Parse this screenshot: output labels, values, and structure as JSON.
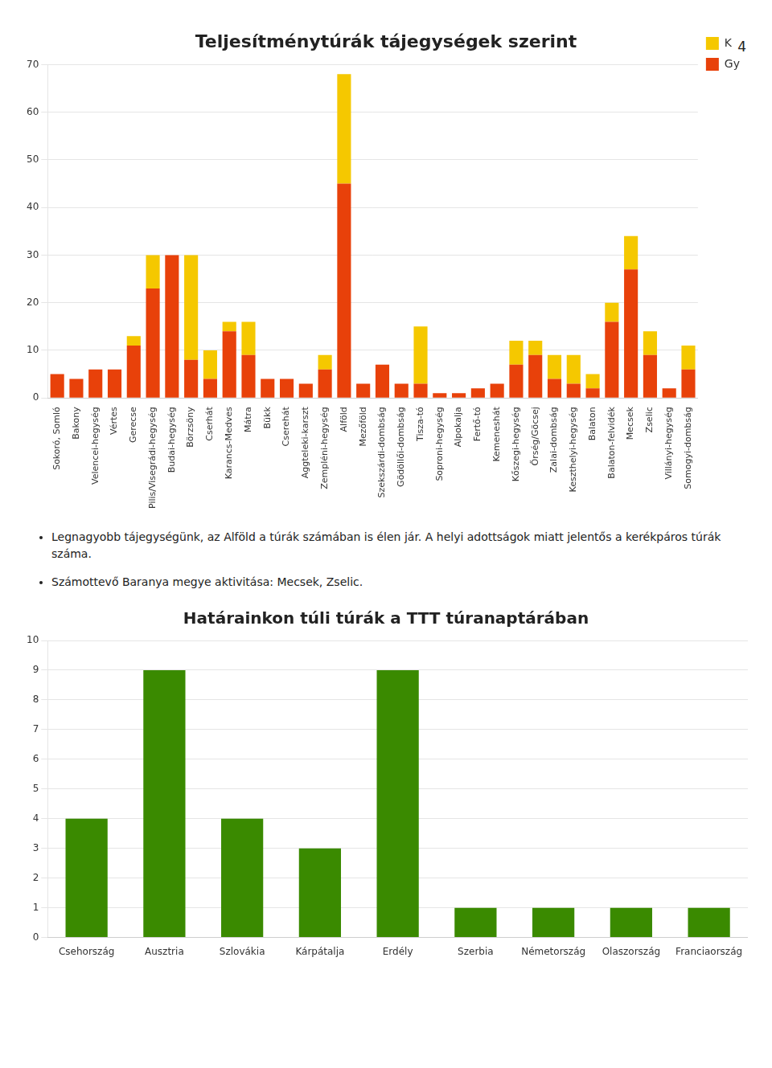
{
  "annotations": [
    "4"
  ],
  "chart_data": [
    {
      "type": "bar",
      "title": "Teljesítménytúrák tájegységek szerint",
      "categories": [
        "Sokoró, Somló",
        "Bakony",
        "Velencei-hegység",
        "Vértes",
        "Gerecse",
        "Pilis/Visegrádi-hegység",
        "Budai-hegység",
        "Börzsöny",
        "Cserhát",
        "Karancs-Medves",
        "Mátra",
        "Bükk",
        "Cserehát",
        "Aggteleki-karszt",
        "Zempléni-hegység",
        "Alföld",
        "Mezőföld",
        "Szekszárdi-dombság",
        "Gödöllői-dombság",
        "Tisza-tó",
        "Soproni-hegység",
        "Alpokalja",
        "Fertő-tó",
        "Kemeneshát",
        "Kőszegi-hegység",
        "Őrség/Göcsej",
        "Zalai-dombság",
        "Keszthelyi-hegység",
        "Balaton",
        "Balaton-felvidék",
        "Mecsek",
        "Zselic",
        "Villányi-hegység",
        "Somogyi-dombság"
      ],
      "series": [
        {
          "name": "Gy",
          "color": "#e8410a",
          "values": [
            5,
            4,
            6,
            6,
            11,
            23,
            30,
            8,
            4,
            14,
            9,
            4,
            4,
            3,
            6,
            45,
            3,
            7,
            3,
            3,
            1,
            1,
            2,
            3,
            7,
            9,
            4,
            3,
            2,
            16,
            27,
            9,
            2,
            6
          ]
        },
        {
          "name": "K",
          "color": "#f5c800",
          "values": [
            0,
            0,
            0,
            0,
            2,
            7,
            0,
            22,
            6,
            2,
            7,
            0,
            0,
            0,
            3,
            23,
            0,
            0,
            0,
            12,
            0,
            0,
            0,
            0,
            5,
            3,
            5,
            6,
            3,
            4,
            7,
            5,
            0,
            5
          ]
        }
      ],
      "stacked": true,
      "ylim": [
        0,
        70
      ],
      "yticks": [
        0,
        10,
        20,
        30,
        40,
        50,
        60,
        70
      ],
      "grid": true,
      "legend": "right",
      "annotations": [
        "Legnagyobb tájegységünk, az Alföld a túrák számában is élen jár. A helyi adottságok miatt jelentős a kerékpáros túrák száma.",
        "Számottevő Baranya megye aktivitása: Mecsek, Zselic."
      ]
    },
    {
      "type": "bar",
      "title": "Határainkon túli túrák a TTT túranaptárában",
      "categories": [
        "Csehország",
        "Ausztria",
        "Szlovákia",
        "Kárpátalja",
        "Erdély",
        "Szerbia",
        "Németország",
        "Olaszország",
        "Franciaország"
      ],
      "values": [
        4,
        9,
        4,
        3,
        9,
        1,
        1,
        1,
        1
      ],
      "color": "#3a8a00",
      "ylim": [
        0,
        10
      ],
      "yticks": [
        0,
        1,
        2,
        3,
        4,
        5,
        6,
        7,
        8,
        9,
        10
      ],
      "grid": true
    }
  ]
}
